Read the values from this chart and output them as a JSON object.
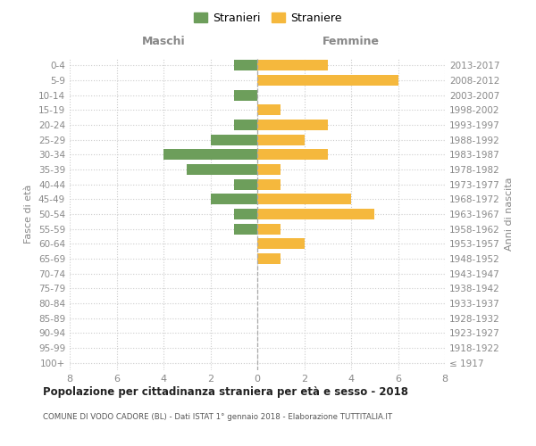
{
  "age_groups": [
    "100+",
    "95-99",
    "90-94",
    "85-89",
    "80-84",
    "75-79",
    "70-74",
    "65-69",
    "60-64",
    "55-59",
    "50-54",
    "45-49",
    "40-44",
    "35-39",
    "30-34",
    "25-29",
    "20-24",
    "15-19",
    "10-14",
    "5-9",
    "0-4"
  ],
  "birth_years": [
    "≤ 1917",
    "1918-1922",
    "1923-1927",
    "1928-1932",
    "1933-1937",
    "1938-1942",
    "1943-1947",
    "1948-1952",
    "1953-1957",
    "1958-1962",
    "1963-1967",
    "1968-1972",
    "1973-1977",
    "1978-1982",
    "1983-1987",
    "1988-1992",
    "1993-1997",
    "1998-2002",
    "2003-2007",
    "2008-2012",
    "2013-2017"
  ],
  "males": [
    0,
    0,
    0,
    0,
    0,
    0,
    0,
    0,
    0,
    1,
    1,
    2,
    1,
    3,
    4,
    2,
    1,
    0,
    1,
    0,
    1
  ],
  "females": [
    0,
    0,
    0,
    0,
    0,
    0,
    0,
    1,
    2,
    1,
    5,
    4,
    1,
    1,
    3,
    2,
    3,
    1,
    0,
    6,
    3
  ],
  "male_color": "#6d9e5b",
  "female_color": "#f5b83d",
  "title": "Popolazione per cittadinanza straniera per età e sesso - 2018",
  "subtitle": "COMUNE DI VODO CADORE (BL) - Dati ISTAT 1° gennaio 2018 - Elaborazione TUTTITALIA.IT",
  "ylabel_left": "Fasce di età",
  "ylabel_right": "Anni di nascita",
  "xlabel_left": "Maschi",
  "xlabel_right": "Femmine",
  "legend_male": "Stranieri",
  "legend_female": "Straniere",
  "xlim": 8,
  "background_color": "#ffffff",
  "grid_color": "#cccccc",
  "label_color": "#888888",
  "title_color": "#222222",
  "subtitle_color": "#555555"
}
